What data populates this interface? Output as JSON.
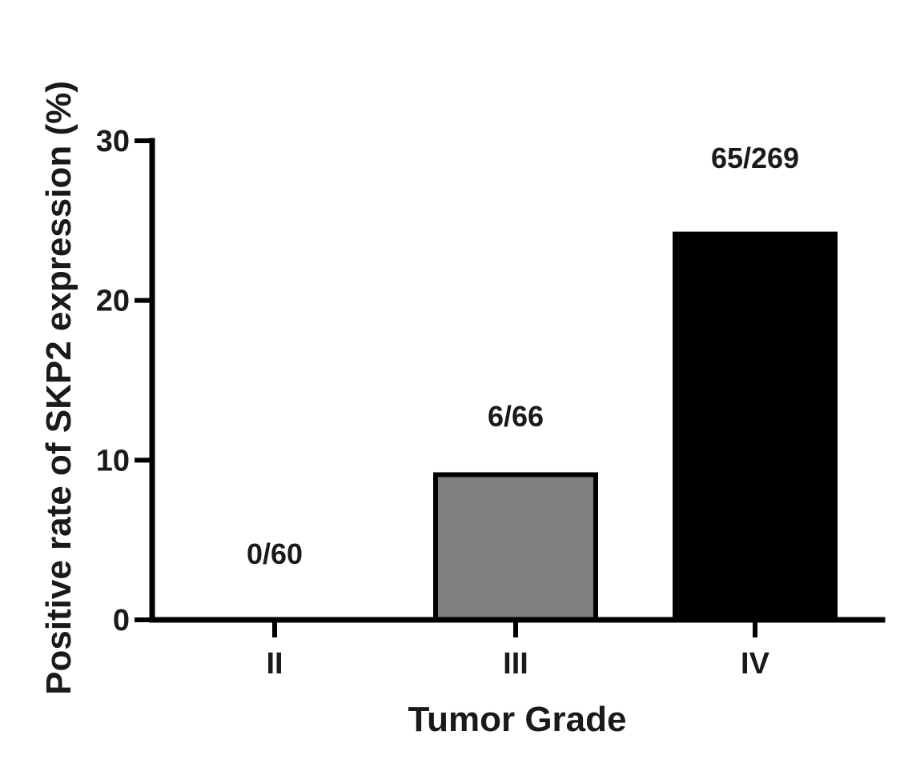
{
  "chart_data": {
    "type": "bar",
    "title": "",
    "xlabel": "Tumor Grade",
    "ylabel": "Positive rate of SKP2 expression (%)",
    "categories": [
      "II",
      "III",
      "IV"
    ],
    "values": [
      0,
      9.09,
      24.16
    ],
    "data_labels": [
      "0/60",
      "6/66",
      "65/269"
    ],
    "colors": [
      "#ffffff",
      "#7f7f7f",
      "#000000"
    ],
    "ylim": [
      0,
      30
    ],
    "yticks": [
      0,
      10,
      20,
      30
    ],
    "ytick_labels": [
      "0",
      "10",
      "20",
      "30"
    ],
    "grid": false,
    "legend": "none"
  }
}
